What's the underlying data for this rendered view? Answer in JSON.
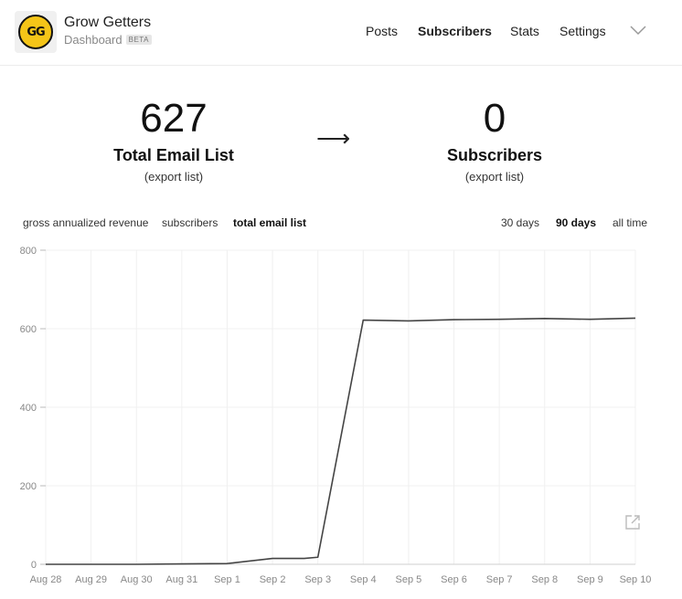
{
  "header": {
    "brand_title": "Grow Getters",
    "brand_sub": "Dashboard",
    "beta": "BETA",
    "logo_text": "GG",
    "nav": [
      "Posts",
      "Subscribers",
      "Stats",
      "Settings"
    ],
    "active_nav": "Subscribers"
  },
  "stats": {
    "total_email": {
      "value": "627",
      "label": "Total Email List",
      "export": "(export list)"
    },
    "arrow": "⟶",
    "subscribers": {
      "value": "0",
      "label": "Subscribers",
      "export": "(export list)"
    }
  },
  "metric_filters": [
    "gross annualized revenue",
    "subscribers",
    "total email list"
  ],
  "active_metric": "total email list",
  "range_filters": [
    "30 days",
    "90 days",
    "all time"
  ],
  "active_range": "90 days",
  "chart_data": {
    "type": "line",
    "x": [
      "Aug 28",
      "Aug 29",
      "Aug 30",
      "Aug 31",
      "Sep 1",
      "Sep 2",
      "Sep 3",
      "Sep 4",
      "Sep 5",
      "Sep 6",
      "Sep 7",
      "Sep 8",
      "Sep 9",
      "Sep 10"
    ],
    "y_ticks": [
      0,
      200,
      400,
      600,
      800
    ],
    "ylim": [
      0,
      800
    ],
    "grid": true,
    "line_color": "#444444",
    "series": [
      {
        "points": [
          {
            "x": 0,
            "y": 0
          },
          {
            "x": 1,
            "y": 0
          },
          {
            "x": 2,
            "y": 0
          },
          {
            "x": 3,
            "y": 1
          },
          {
            "x": 4,
            "y": 2
          },
          {
            "x": 5,
            "y": 15
          },
          {
            "x": 5.7,
            "y": 15
          },
          {
            "x": 6,
            "y": 18
          },
          {
            "x": 7,
            "y": 622
          },
          {
            "x": 8,
            "y": 620
          },
          {
            "x": 9,
            "y": 623
          },
          {
            "x": 10,
            "y": 624
          },
          {
            "x": 11,
            "y": 626
          },
          {
            "x": 12,
            "y": 624
          },
          {
            "x": 13,
            "y": 627
          }
        ]
      }
    ]
  }
}
